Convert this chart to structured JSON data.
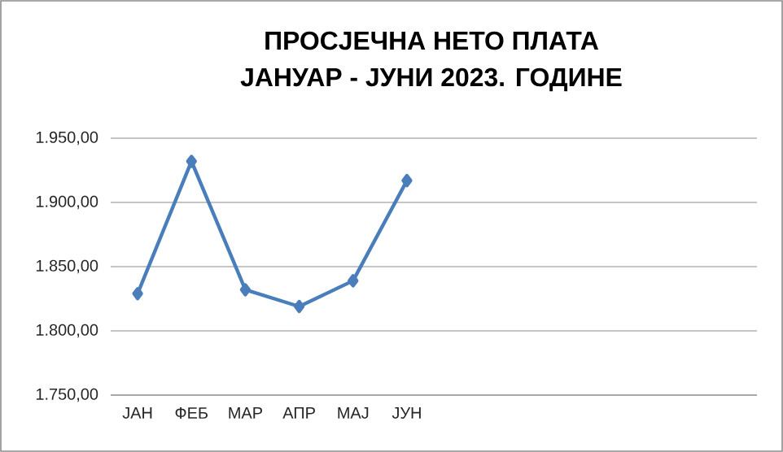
{
  "chart_data": {
    "type": "line",
    "title": "ПРОСЈЕЧНА НЕТО ПЛАТА",
    "subtitle": "ЈАНУАР - ЈУНИ 2023. ГОДИНЕ",
    "categories": [
      "ЈАН",
      "ФЕБ",
      "МАР",
      "АПР",
      "МАЈ",
      "ЈУН",
      null,
      null,
      null,
      null,
      null,
      null
    ],
    "series": [
      {
        "color": "#4a7ebb",
        "values": [
          1829,
          1932,
          1832,
          1819,
          1839,
          1917,
          null,
          null,
          null,
          null,
          null,
          null
        ]
      }
    ],
    "ylim": [
      1750,
      1950
    ],
    "yticks": [
      {
        "value": 1750,
        "label": "1.750,00"
      },
      {
        "value": 1800,
        "label": "1.800,00"
      },
      {
        "value": 1850,
        "label": "1.850,00"
      },
      {
        "value": 1900,
        "label": "1.900,00"
      },
      {
        "value": 1950,
        "label": "1.950,00"
      }
    ],
    "grid": "y",
    "marker": "diamond",
    "line_style": "solid"
  }
}
